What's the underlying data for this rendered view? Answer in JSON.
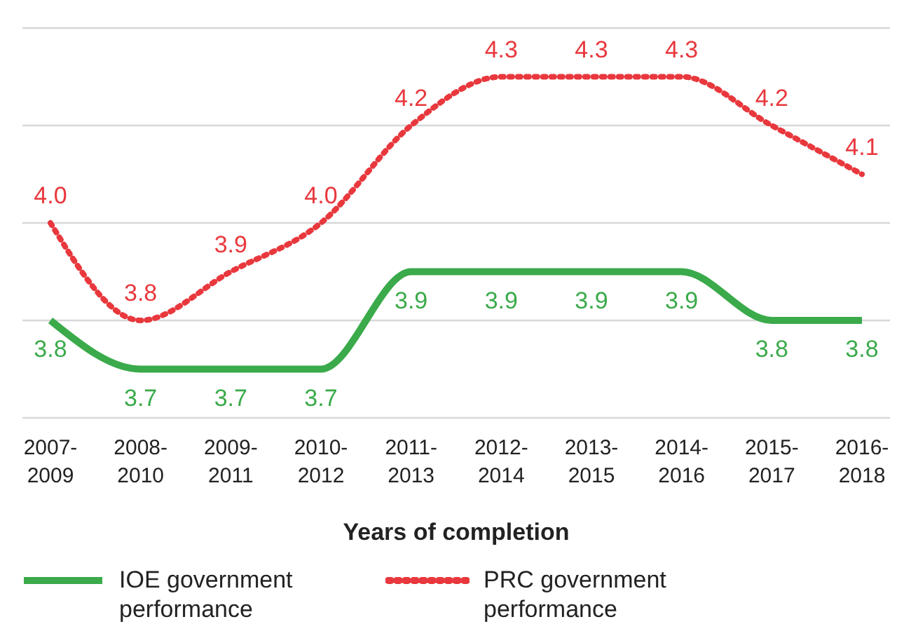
{
  "chart_data": {
    "type": "line",
    "xlabel": "Years of completion",
    "categories": [
      "2007-2009",
      "2008-2010",
      "2009-2011",
      "2010-2012",
      "2011-2013",
      "2012-2014",
      "2013-2015",
      "2014-2016",
      "2015-2017",
      "2016-2018"
    ],
    "series": [
      {
        "name": "IOE government performance",
        "color": "#3aaa4a",
        "line_style": "solid",
        "values": [
          3.8,
          3.7,
          3.7,
          3.7,
          3.9,
          3.9,
          3.9,
          3.9,
          3.8,
          3.8
        ],
        "value_labels": [
          "3.8",
          "3.7",
          "3.7",
          "3.7",
          "3.9",
          "3.9",
          "3.9",
          "3.9",
          "3.8",
          "3.8"
        ]
      },
      {
        "name": "PRC government performance",
        "color": "#e8383d",
        "line_style": "dotted",
        "values": [
          4.0,
          3.8,
          3.9,
          4.0,
          4.2,
          4.3,
          4.3,
          4.3,
          4.2,
          4.1
        ],
        "value_labels": [
          "4.0",
          "3.8",
          "3.9",
          "4.0",
          "4.2",
          "4.3",
          "4.3",
          "4.3",
          "4.2",
          "4.1"
        ]
      }
    ],
    "tick_labels": "x",
    "grid": "y",
    "legend": "bottom",
    "marker": "none"
  }
}
